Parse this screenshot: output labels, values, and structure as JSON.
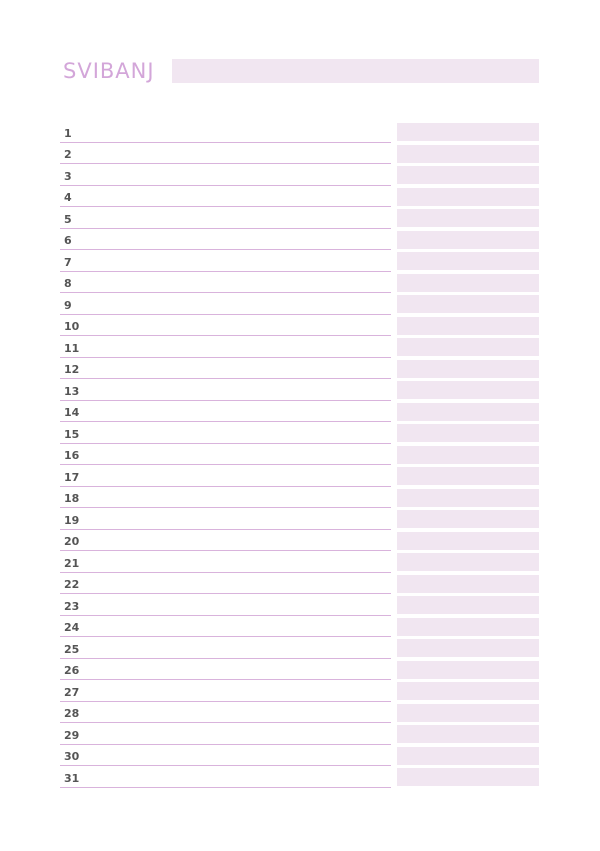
{
  "header": {
    "month": "SVIBANJ"
  },
  "days": [
    "1",
    "2",
    "3",
    "4",
    "5",
    "6",
    "7",
    "8",
    "9",
    "10",
    "11",
    "12",
    "13",
    "14",
    "15",
    "16",
    "17",
    "18",
    "19",
    "20",
    "21",
    "22",
    "23",
    "24",
    "25",
    "26",
    "27",
    "28",
    "29",
    "30",
    "31"
  ],
  "colors": {
    "accent": "#d3a6d9",
    "box_fill": "#f1e6f1",
    "rule_line": "#d9b3dc",
    "number_text": "#555555"
  }
}
